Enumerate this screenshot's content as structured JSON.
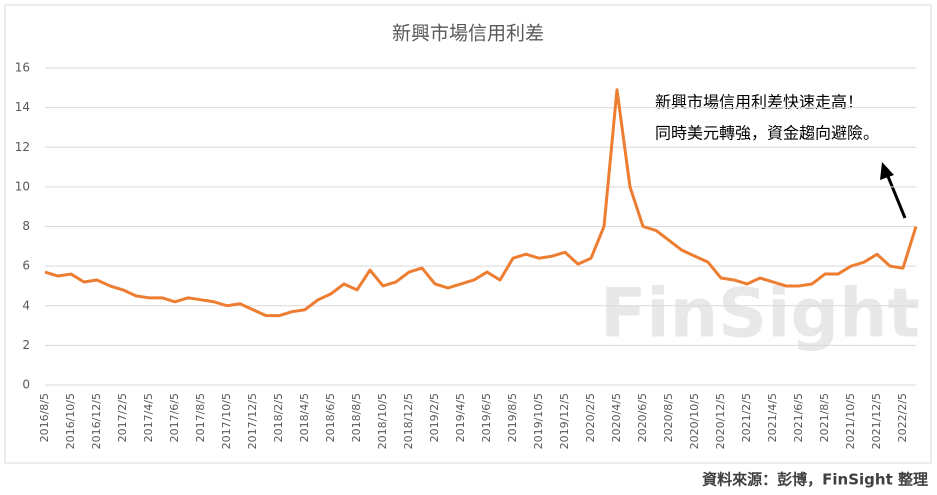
{
  "chart_data": {
    "type": "line",
    "title": "新興市場信用利差",
    "annotation": [
      "新興市場信用利差快速走高！",
      "同時美元轉強，資金趨向避險。"
    ],
    "watermark": "FinSight",
    "source": "資料來源：彭博，FinSight 整理",
    "categories": [
      "2016/8/5",
      null,
      "2016/10/5",
      null,
      "2016/12/5",
      null,
      "2017/2/5",
      null,
      "2017/4/5",
      null,
      "2017/6/5",
      null,
      "2017/8/5",
      null,
      "2017/10/5",
      null,
      "2017/12/5",
      null,
      "2018/2/5",
      null,
      "2018/4/5",
      null,
      "2018/6/5",
      null,
      "2018/8/5",
      null,
      "2018/10/5",
      null,
      "2018/12/5",
      null,
      "2019/2/5",
      null,
      "2019/4/5",
      null,
      "2019/6/5",
      null,
      "2019/8/5",
      null,
      "2019/10/5",
      null,
      "2019/12/5",
      null,
      "2020/2/5",
      null,
      "2020/4/5",
      null,
      "2020/6/5",
      null,
      "2020/8/5",
      null,
      "2020/10/5",
      null,
      "2020/12/5",
      null,
      "2021/2/5",
      null,
      "2021/4/5",
      null,
      "2021/6/5",
      null,
      "2021/8/5",
      null,
      "2021/10/5",
      null,
      "2021/12/5",
      null,
      "2022/2/5",
      null
    ],
    "series": [
      {
        "name": "新興市場信用利差",
        "color": "#ed7d31",
        "values": [
          5.7,
          5.5,
          5.6,
          5.2,
          5.3,
          5.0,
          4.8,
          4.5,
          4.4,
          4.4,
          4.2,
          4.4,
          4.3,
          4.2,
          4.0,
          4.1,
          3.8,
          3.5,
          3.5,
          3.7,
          3.8,
          4.3,
          4.6,
          5.1,
          4.8,
          5.8,
          5.0,
          5.2,
          5.7,
          5.9,
          5.1,
          4.9,
          5.1,
          5.3,
          5.7,
          5.3,
          6.4,
          6.6,
          6.4,
          6.5,
          6.7,
          6.1,
          6.4,
          8.0,
          14.9,
          10.0,
          8.0,
          7.8,
          7.3,
          6.8,
          6.5,
          6.2,
          5.4,
          5.3,
          5.1,
          5.4,
          5.2,
          5.0,
          5.0,
          5.1,
          5.6,
          5.6,
          6.0,
          6.2,
          6.6,
          6.0,
          5.9,
          8.0
        ]
      }
    ],
    "ylim": [
      0,
      16
    ],
    "yticks": [
      0,
      2,
      4,
      6,
      8,
      10,
      12,
      14,
      16
    ],
    "grid": true
  }
}
